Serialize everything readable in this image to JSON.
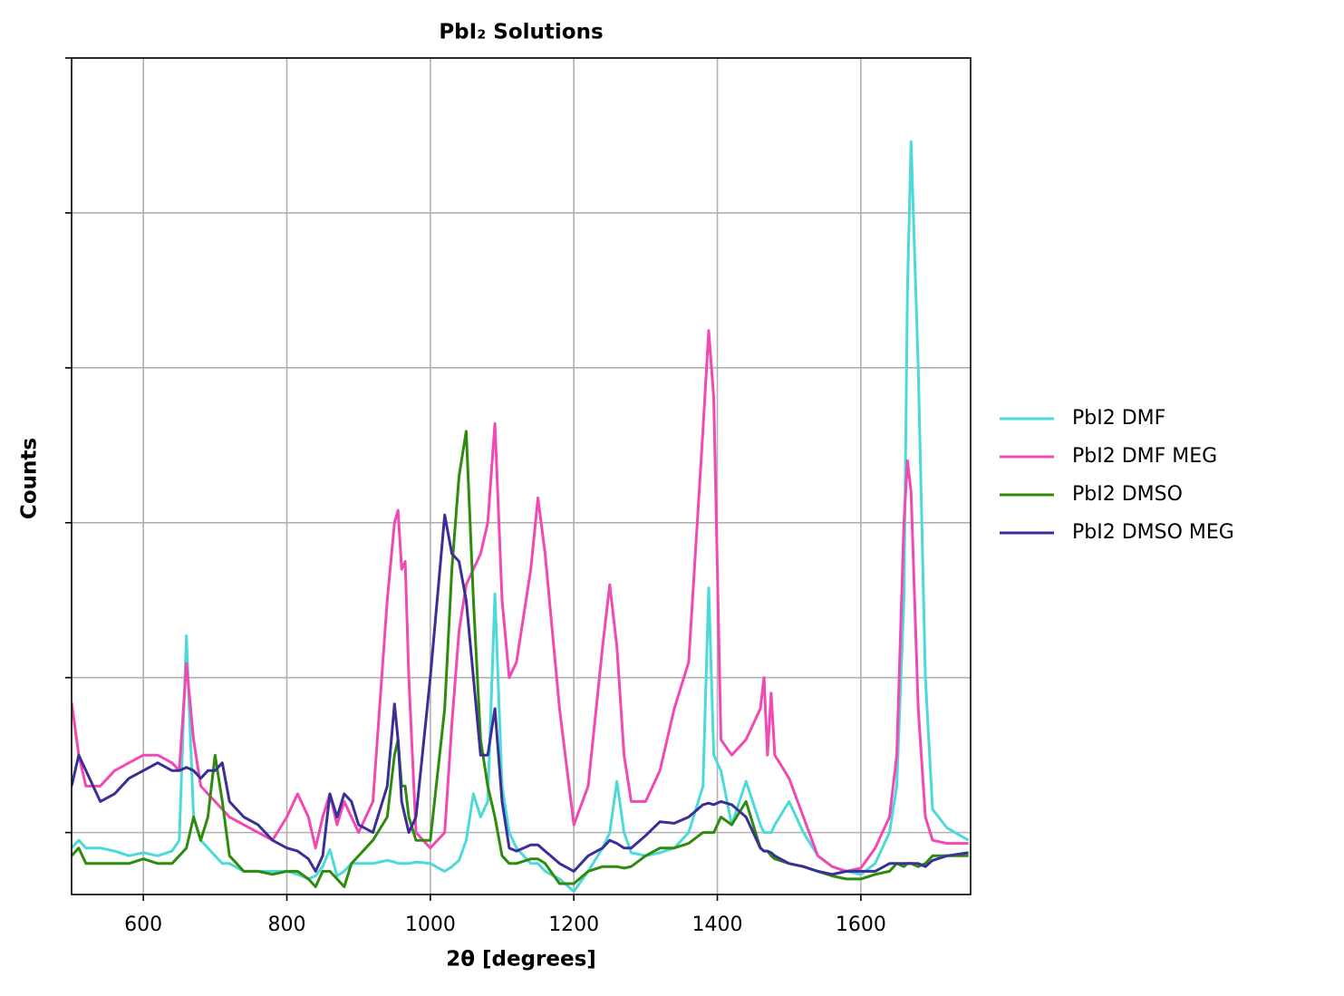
{
  "chart_data": {
    "type": "line",
    "title": "PbI₂ Solutions",
    "x_label": "2θ [degrees]",
    "y_label": "Counts",
    "x": [
      500,
      510,
      520,
      540,
      560,
      580,
      600,
      620,
      640,
      650,
      660,
      670,
      680,
      690,
      700,
      710,
      720,
      740,
      760,
      780,
      800,
      815,
      830,
      840,
      850,
      860,
      870,
      880,
      890,
      900,
      920,
      940,
      950,
      955,
      960,
      965,
      970,
      980,
      1000,
      1020,
      1030,
      1040,
      1050,
      1060,
      1070,
      1080,
      1090,
      1100,
      1110,
      1120,
      1140,
      1150,
      1160,
      1180,
      1200,
      1220,
      1240,
      1250,
      1260,
      1270,
      1280,
      1300,
      1320,
      1340,
      1360,
      1380,
      1388,
      1395,
      1405,
      1420,
      1440,
      1460,
      1465,
      1470,
      1475,
      1480,
      1500,
      1520,
      1540,
      1560,
      1580,
      1600,
      1620,
      1640,
      1650,
      1660,
      1665,
      1670,
      1680,
      1690,
      1700,
      1720,
      1750
    ],
    "series": [
      {
        "name": "PbI2 DMF",
        "color": "#4dd9d9",
        "values": [
          -0.1,
          -0.05,
          -0.1,
          -0.1,
          -0.12,
          -0.15,
          -0.13,
          -0.15,
          -0.12,
          -0.05,
          1.27,
          0.1,
          -0.05,
          -0.1,
          -0.15,
          -0.2,
          -0.2,
          -0.25,
          -0.25,
          -0.25,
          -0.25,
          -0.27,
          -0.3,
          -0.28,
          -0.22,
          -0.11,
          -0.28,
          -0.25,
          -0.2,
          -0.2,
          -0.2,
          -0.18,
          -0.19,
          -0.2,
          -0.2,
          -0.2,
          -0.2,
          -0.19,
          -0.2,
          -0.25,
          -0.22,
          -0.18,
          -0.05,
          0.25,
          0.1,
          0.2,
          1.54,
          0.3,
          0,
          -0.1,
          -0.2,
          -0.2,
          -0.25,
          -0.3,
          -0.38,
          -0.25,
          -0.1,
          0,
          0.33,
          0,
          -0.13,
          -0.15,
          -0.13,
          -0.1,
          0,
          0.3,
          1.58,
          0.5,
          0.4,
          0.05,
          0.33,
          0.05,
          0,
          0,
          0,
          0.05,
          0.2,
          0,
          -0.15,
          -0.22,
          -0.25,
          -0.27,
          -0.2,
          0,
          0.3,
          1.5,
          3.5,
          4.46,
          3.0,
          1.0,
          0.15,
          0.03,
          -0.05
        ]
      },
      {
        "name": "PbI2 DMF MEG",
        "color": "#f049b4",
        "values": [
          0.84,
          0.5,
          0.3,
          0.3,
          0.4,
          0.45,
          0.5,
          0.5,
          0.45,
          0.4,
          1.09,
          0.6,
          0.3,
          0.25,
          0.2,
          0.15,
          0.1,
          0.05,
          0,
          -0.05,
          0.1,
          0.25,
          0.1,
          -0.1,
          0.1,
          0.25,
          0.05,
          0.2,
          0.1,
          0,
          0.2,
          1.5,
          2.0,
          2.08,
          1.7,
          1.75,
          1.0,
          0,
          -0.1,
          0,
          0.7,
          1.3,
          1.6,
          1.7,
          1.8,
          2.0,
          2.64,
          1.5,
          1.0,
          1.1,
          1.7,
          2.16,
          1.8,
          0.8,
          0.05,
          0.3,
          1.2,
          1.6,
          1.2,
          0.5,
          0.2,
          0.2,
          0.4,
          0.8,
          1.1,
          2.6,
          3.24,
          2.8,
          0.6,
          0.5,
          0.6,
          0.8,
          1.0,
          0.5,
          0.9,
          0.5,
          0.35,
          0.1,
          -0.15,
          -0.22,
          -0.25,
          -0.23,
          -0.1,
          0.1,
          0.5,
          2.0,
          2.4,
          2.2,
          0.8,
          0.1,
          -0.05,
          -0.07,
          -0.07
        ]
      },
      {
        "name": "PbI2 DMSO",
        "color": "#2e8b0e",
        "values": [
          -0.15,
          -0.1,
          -0.2,
          -0.2,
          -0.2,
          -0.2,
          -0.17,
          -0.2,
          -0.2,
          -0.15,
          -0.1,
          0.1,
          -0.05,
          0.1,
          0.5,
          0.2,
          -0.15,
          -0.25,
          -0.25,
          -0.27,
          -0.25,
          -0.25,
          -0.3,
          -0.35,
          -0.25,
          -0.25,
          -0.3,
          -0.35,
          -0.2,
          -0.15,
          -0.05,
          0.1,
          0.5,
          0.6,
          0.3,
          0.3,
          0.1,
          -0.05,
          -0.05,
          0.8,
          1.7,
          2.3,
          2.59,
          1.5,
          0.6,
          0.3,
          0.1,
          -0.15,
          -0.2,
          -0.2,
          -0.17,
          -0.17,
          -0.2,
          -0.33,
          -0.33,
          -0.25,
          -0.22,
          -0.22,
          -0.22,
          -0.23,
          -0.22,
          -0.15,
          -0.1,
          -0.1,
          -0.07,
          0,
          0,
          0,
          0.1,
          0.05,
          0.2,
          -0.1,
          -0.12,
          -0.12,
          -0.15,
          -0.17,
          -0.2,
          -0.22,
          -0.25,
          -0.28,
          -0.3,
          -0.3,
          -0.27,
          -0.25,
          -0.2,
          -0.22,
          -0.2,
          -0.2,
          -0.22,
          -0.2,
          -0.15,
          -0.15,
          -0.15
        ]
      },
      {
        "name": "PbI2 DMSO MEG",
        "color": "#3a2f96",
        "values": [
          0.3,
          0.5,
          0.4,
          0.2,
          0.25,
          0.35,
          0.4,
          0.45,
          0.4,
          0.4,
          0.42,
          0.4,
          0.35,
          0.4,
          0.4,
          0.45,
          0.2,
          0.1,
          0.05,
          -0.05,
          -0.1,
          -0.12,
          -0.17,
          -0.25,
          -0.15,
          0.25,
          0.1,
          0.25,
          0.2,
          0.05,
          0,
          0.3,
          0.83,
          0.6,
          0.2,
          0.1,
          0,
          0.1,
          1.0,
          2.05,
          1.8,
          1.75,
          1.5,
          1.0,
          0.5,
          0.5,
          0.8,
          0.2,
          -0.1,
          -0.12,
          -0.08,
          -0.08,
          -0.12,
          -0.2,
          -0.25,
          -0.15,
          -0.1,
          -0.05,
          -0.07,
          -0.1,
          -0.1,
          -0.02,
          0.07,
          0.06,
          0.1,
          0.18,
          0.19,
          0.18,
          0.2,
          0.18,
          0.1,
          -0.1,
          -0.12,
          -0.12,
          -0.13,
          -0.15,
          -0.2,
          -0.22,
          -0.25,
          -0.27,
          -0.25,
          -0.25,
          -0.25,
          -0.2,
          -0.2,
          -0.2,
          -0.2,
          -0.2,
          -0.2,
          -0.22,
          -0.18,
          -0.15,
          -0.13
        ]
      }
    ],
    "xlim": [
      500,
      1753
    ],
    "xticks": [
      600,
      800,
      1000,
      1200,
      1400,
      1600
    ],
    "ylim": [
      -0.4,
      5
    ],
    "yticks": [
      0,
      1,
      2,
      3,
      4,
      5
    ],
    "ytick_labels": false,
    "grid": true,
    "legend": "outside right"
  }
}
